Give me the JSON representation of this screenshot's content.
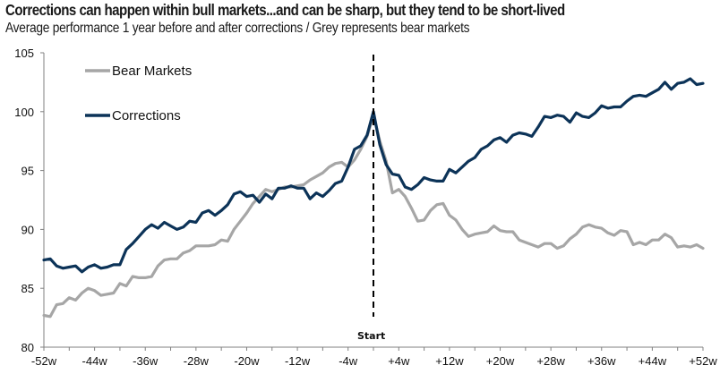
{
  "chart_data": {
    "type": "line",
    "title": "Corrections can happen within bull markets...and can be sharp, but they tend to be short-lived",
    "subtitle": "Average performance 1 year before and after corrections / Grey represents bear markets",
    "xlabel": "",
    "ylabel": "",
    "ylim": [
      80,
      105
    ],
    "xlim": [
      -52,
      52
    ],
    "yticks": [
      "80",
      "85",
      "90",
      "95",
      "100",
      "105"
    ],
    "ytick_values": [
      80,
      85,
      90,
      95,
      100,
      105
    ],
    "xticks": [
      "-52w",
      "-44w",
      "-36w",
      "-28w",
      "-20w",
      "-12w",
      "-4w",
      "+4w",
      "+12w",
      "+20w",
      "+28w",
      "+36w",
      "+44w",
      "+52w"
    ],
    "xtick_values": [
      -52,
      -44,
      -36,
      -28,
      -20,
      -12,
      -4,
      4,
      12,
      20,
      28,
      36,
      44,
      52
    ],
    "annotation": {
      "label": "Start",
      "x": 0
    },
    "grid": false,
    "legend_position": "top-left",
    "colors": {
      "bear": "#a6a6a6",
      "corrections": "#0c3358",
      "start_line": "#000000",
      "axis": "#808080"
    },
    "x_weeks_start": -52,
    "series": [
      {
        "name": "Bear Markets",
        "key": "bear",
        "values": [
          82.7,
          82.6,
          83.6,
          83.7,
          84.2,
          84.0,
          84.6,
          85.0,
          84.8,
          84.4,
          84.5,
          84.6,
          85.4,
          85.2,
          86.0,
          85.9,
          85.9,
          86.0,
          86.9,
          87.4,
          87.5,
          87.5,
          88.0,
          88.2,
          88.6,
          88.6,
          88.6,
          88.7,
          89.1,
          89.0,
          90.0,
          90.7,
          91.4,
          92.2,
          92.8,
          93.4,
          93.2,
          93.4,
          93.6,
          93.6,
          93.7,
          93.8,
          94.2,
          94.5,
          94.8,
          95.3,
          95.6,
          95.7,
          95.3,
          95.9,
          96.8,
          97.9,
          99.7,
          97.5,
          95.8,
          93.1,
          93.4,
          92.8,
          91.8,
          90.7,
          90.8,
          91.6,
          92.1,
          92.2,
          91.2,
          90.8,
          90.0,
          89.4,
          89.6,
          89.7,
          89.8,
          90.3,
          89.9,
          89.8,
          89.8,
          89.1,
          88.9,
          88.7,
          88.5,
          88.8,
          88.8,
          88.4,
          88.6,
          89.2,
          89.6,
          90.2,
          90.4,
          90.2,
          90.1,
          89.7,
          89.5,
          89.9,
          89.8,
          88.7,
          88.9,
          88.7,
          89.1,
          89.1,
          89.6,
          89.3,
          88.5,
          88.6,
          88.5,
          88.7,
          88.4
        ]
      },
      {
        "name": "Corrections",
        "key": "corrections",
        "values": [
          87.4,
          87.5,
          86.9,
          86.7,
          86.8,
          86.9,
          86.4,
          86.8,
          87.0,
          86.7,
          86.8,
          87.0,
          87.0,
          88.3,
          88.8,
          89.4,
          90.0,
          90.4,
          90.1,
          90.6,
          90.3,
          90.0,
          90.2,
          90.7,
          90.6,
          91.4,
          91.6,
          91.2,
          91.6,
          92.1,
          93.0,
          93.2,
          92.8,
          92.9,
          92.3,
          93.0,
          92.6,
          93.5,
          93.5,
          93.7,
          93.5,
          93.5,
          92.6,
          93.1,
          92.8,
          93.3,
          93.9,
          94.1,
          95.3,
          96.8,
          97.1,
          98.0,
          100.0,
          97.2,
          95.5,
          94.7,
          94.6,
          93.6,
          93.4,
          93.8,
          94.4,
          94.2,
          94.1,
          94.1,
          95.1,
          94.8,
          95.3,
          95.8,
          96.1,
          96.8,
          97.1,
          97.6,
          97.8,
          97.4,
          98.0,
          98.2,
          98.1,
          97.9,
          98.7,
          99.6,
          99.5,
          99.7,
          99.6,
          99.1,
          99.9,
          99.6,
          99.5,
          99.9,
          100.5,
          100.3,
          100.4,
          100.4,
          100.9,
          101.3,
          101.4,
          101.3,
          101.6,
          101.9,
          102.5,
          101.9,
          102.4,
          102.5,
          102.8,
          102.3,
          102.4
        ]
      }
    ]
  }
}
